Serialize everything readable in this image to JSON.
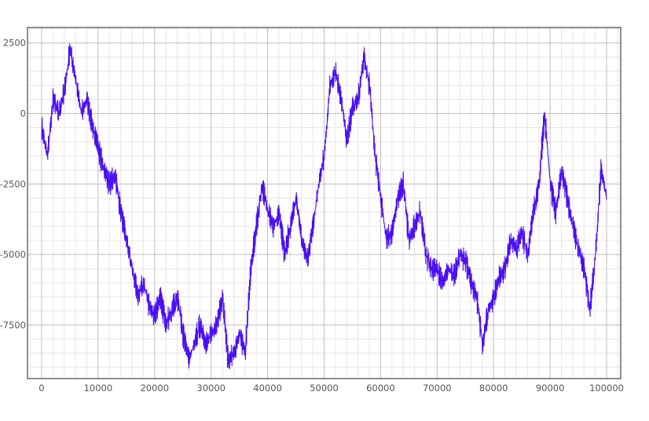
{
  "chart_data": {
    "type": "line",
    "title": "",
    "xlabel": "",
    "ylabel": "",
    "xlim": [
      -2500,
      102500
    ],
    "ylim": [
      -9400,
      3050
    ],
    "x_ticks": [
      0,
      10000,
      20000,
      30000,
      40000,
      50000,
      60000,
      70000,
      80000,
      90000,
      100000
    ],
    "x_tick_labels": [
      "0",
      "10000",
      "20000",
      "30000",
      "40000",
      "50000",
      "60000",
      "70000",
      "80000",
      "90000",
      "100000"
    ],
    "y_ticks": [
      2500,
      0,
      -2500,
      -5000,
      -7500
    ],
    "y_tick_labels": [
      "2500",
      "0",
      "-2500",
      "-5000",
      "-7500"
    ],
    "grid": true,
    "minor_grid": true,
    "series": [
      {
        "color": "#4b0ff2",
        "x": [
          0,
          1000,
          2000,
          3000,
          4000,
          5000,
          6000,
          7000,
          8000,
          9000,
          10000,
          11000,
          12000,
          13000,
          14000,
          15000,
          16000,
          17000,
          18000,
          19000,
          20000,
          21000,
          22000,
          23000,
          24000,
          25000,
          26000,
          27000,
          28000,
          29000,
          30000,
          31000,
          32000,
          33000,
          34000,
          35000,
          36000,
          37000,
          38000,
          39000,
          40000,
          41000,
          42000,
          43000,
          44000,
          45000,
          46000,
          47000,
          48000,
          49000,
          50000,
          51000,
          52000,
          53000,
          54000,
          55000,
          56000,
          57000,
          58000,
          59000,
          60000,
          61000,
          62000,
          63000,
          64000,
          65000,
          66000,
          67000,
          68000,
          69000,
          70000,
          71000,
          72000,
          73000,
          74000,
          75000,
          76000,
          77000,
          78000,
          79000,
          80000,
          81000,
          82000,
          83000,
          84000,
          85000,
          86000,
          87000,
          88000,
          89000,
          90000,
          91000,
          92000,
          93000,
          94000,
          95000,
          96000,
          97000,
          98000,
          99000,
          100000
        ],
        "y": [
          -500,
          -1500,
          500,
          0,
          800,
          2300,
          1200,
          0,
          500,
          -500,
          -1200,
          -2000,
          -2500,
          -2200,
          -3500,
          -4500,
          -5500,
          -6500,
          -6000,
          -6800,
          -7200,
          -6500,
          -7500,
          -7000,
          -6500,
          -7800,
          -8700,
          -8200,
          -7500,
          -8200,
          -7800,
          -7500,
          -6500,
          -8800,
          -8500,
          -7800,
          -8500,
          -5500,
          -4000,
          -2500,
          -3500,
          -4000,
          -3500,
          -5000,
          -4000,
          -3000,
          -4500,
          -5200,
          -4000,
          -2500,
          -1500,
          1000,
          1500,
          500,
          -1000,
          200,
          500,
          2000,
          1000,
          -1500,
          -3000,
          -4500,
          -4200,
          -3000,
          -2500,
          -4500,
          -4000,
          -3500,
          -5000,
          -5500,
          -5500,
          -6000,
          -5500,
          -5800,
          -5000,
          -5200,
          -6000,
          -6500,
          -8200,
          -7000,
          -6500,
          -5800,
          -5500,
          -4500,
          -4800,
          -4200,
          -5000,
          -3500,
          -2500,
          0,
          -2500,
          -3500,
          -2000,
          -3000,
          -4000,
          -4800,
          -5500,
          -7000,
          -5000,
          -2000,
          -3000
        ]
      }
    ]
  }
}
